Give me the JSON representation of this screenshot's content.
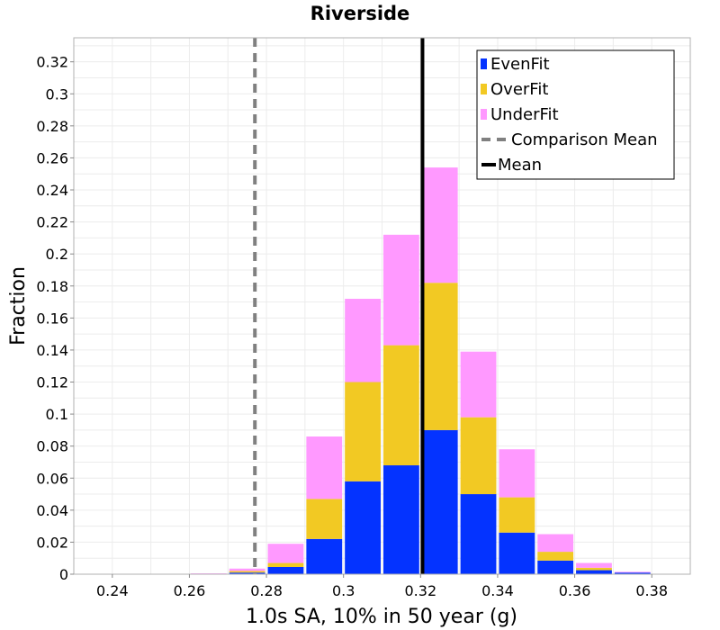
{
  "chart_data": {
    "type": "bar",
    "stacked": true,
    "title": "Riverside",
    "xlabel": "1.0s SA, 10% in 50 year (g)",
    "ylabel": "Fraction",
    "xlim": [
      0.23,
      0.39
    ],
    "ylim": [
      0,
      0.335
    ],
    "bin_width": 0.01,
    "x": [
      0.235,
      0.245,
      0.255,
      0.265,
      0.275,
      0.285,
      0.295,
      0.305,
      0.315,
      0.325,
      0.335,
      0.345,
      0.355,
      0.365,
      0.375,
      0.385
    ],
    "series": [
      {
        "name": "EvenFit",
        "color": "#0433ff",
        "values": [
          0,
          0,
          0,
          0,
          0.001,
          0.0045,
          0.022,
          0.058,
          0.068,
          0.09,
          0.05,
          0.026,
          0.0085,
          0.0025,
          0.001,
          0
        ]
      },
      {
        "name": "OverFit",
        "color": "#f2c923",
        "values": [
          0,
          0,
          0,
          0,
          0.001,
          0.0025,
          0.025,
          0.062,
          0.075,
          0.092,
          0.048,
          0.022,
          0.0055,
          0.0015,
          0,
          0
        ]
      },
      {
        "name": "UnderFit",
        "color": "#ff99ff",
        "values": [
          0,
          0,
          0,
          0.0005,
          0.0015,
          0.012,
          0.039,
          0.052,
          0.069,
          0.072,
          0.041,
          0.03,
          0.011,
          0.003,
          0.0005,
          0
        ]
      }
    ],
    "lines": [
      {
        "name": "Comparison Mean",
        "x": 0.277,
        "color": "#808080",
        "style": "dashed"
      },
      {
        "name": "Mean",
        "x": 0.3205,
        "color": "#000000",
        "style": "solid"
      }
    ],
    "xticks": [
      "0.24",
      "0.26",
      "0.28",
      "0.3",
      "0.32",
      "0.34",
      "0.36",
      "0.38"
    ],
    "yticks": [
      "0",
      "0.02",
      "0.04",
      "0.06",
      "0.08",
      "0.1",
      "0.12",
      "0.14",
      "0.16",
      "0.18",
      "0.2",
      "0.22",
      "0.24",
      "0.26",
      "0.28",
      "0.3",
      "0.32"
    ],
    "legend": {
      "position": "top-right",
      "entries": [
        "EvenFit",
        "OverFit",
        "UnderFit",
        "Comparison Mean",
        "Mean"
      ]
    },
    "grid": true
  }
}
